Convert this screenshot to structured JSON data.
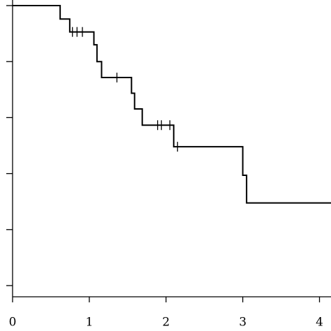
{
  "chart_data": {
    "type": "km",
    "x": [
      0,
      0.62,
      0.745,
      1.06,
      1.1,
      1.16,
      1.55,
      1.59,
      1.69,
      2.1,
      3.0,
      3.05,
      4.15
    ],
    "values": [
      1.0,
      0.952,
      0.906,
      0.86,
      0.8,
      0.743,
      0.687,
      0.631,
      0.573,
      0.496,
      0.394,
      0.295,
      0.295
    ],
    "censored": {
      "x": [
        0.78,
        0.84,
        0.91,
        1.36,
        1.89,
        1.94,
        2.05,
        2.15
      ],
      "values": [
        0.906,
        0.906,
        0.906,
        0.743,
        0.573,
        0.573,
        0.573,
        0.496
      ]
    },
    "color": "#000000",
    "xlim": [
      0,
      4.15
    ],
    "xticks": [
      0,
      1,
      2,
      3,
      4
    ],
    "ylim": [
      -0.04,
      1.02
    ],
    "yticks": [
      0,
      0.2,
      0.4,
      0.6,
      0.8,
      1.0
    ]
  }
}
